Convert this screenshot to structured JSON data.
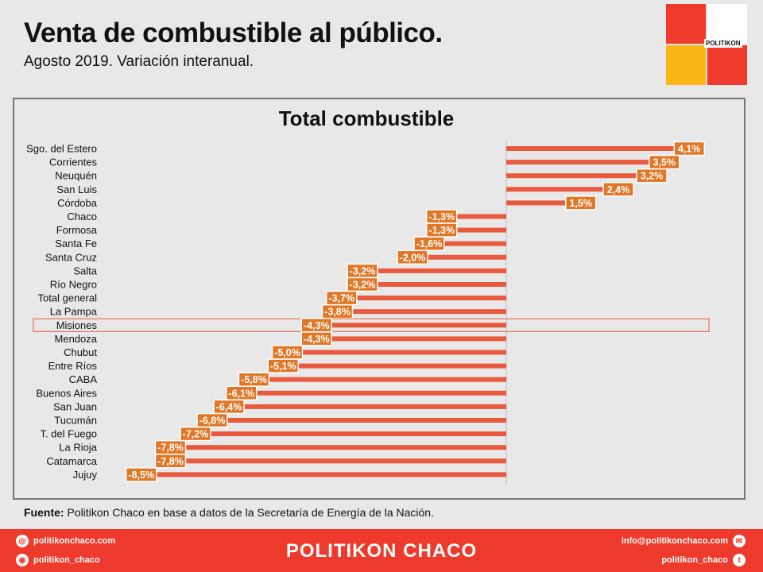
{
  "header": {
    "title": "Venta de combustible al público.",
    "subtitle": "Agosto 2019. Variación interanual."
  },
  "logo": {
    "text": "POLITIKON"
  },
  "chart_data": {
    "type": "bar",
    "orientation": "horizontal",
    "title": "Total combustible",
    "categories": [
      "Sgo. del Estero",
      "Corrientes",
      "Neuquén",
      "San Luis",
      "Córdoba",
      "Chaco",
      "Formosa",
      "Santa Fe",
      "Santa Cruz",
      "Salta",
      "Río Negro",
      "Total general",
      "La Pampa",
      "Misiones",
      "Mendoza",
      "Chubut",
      "Entre Ríos",
      "CABA",
      "Buenos Aires",
      "San Juan",
      "Tucumán",
      "T. del Fuego",
      "La Rioja",
      "Catamarca",
      "Jujuy"
    ],
    "values": [
      4.1,
      3.5,
      3.2,
      2.4,
      1.5,
      -1.3,
      -1.3,
      -1.6,
      -2.0,
      -3.2,
      -3.2,
      -3.7,
      -3.8,
      -4.3,
      -4.3,
      -5.0,
      -5.1,
      -5.8,
      -6.1,
      -6.4,
      -6.8,
      -7.2,
      -7.8,
      -7.8,
      -8.5
    ],
    "labels": [
      "4,1%",
      "3,5%",
      "3,2%",
      "2,4%",
      "1,5%",
      "-1,3%",
      "-1,3%",
      "-1,6%",
      "-2,0%",
      "-3,2%",
      "-3,2%",
      "-3,7%",
      "-3,8%",
      "-4,3%",
      "-4,3%",
      "-5,0%",
      "-5,1%",
      "-5,8%",
      "-6,1%",
      "-6,4%",
      "-6,8%",
      "-7,2%",
      "-7,8%",
      "-7,8%",
      "-8,5%"
    ],
    "highlighted": "Misiones",
    "bar_color": "#e8593e",
    "label_color": "#e07828",
    "highlight_color": "#e8593e"
  },
  "source": {
    "label": "Fuente:",
    "text": " Politikon Chaco en base a datos de la Secretaría  de Energía de la Nación."
  },
  "footer": {
    "brand": "POLITIKON CHACO",
    "web": "politikonchaco.com",
    "instagram": "politikon_chaco",
    "email": "info@politikonchaco.com",
    "twitter": "politikon_chaco"
  }
}
